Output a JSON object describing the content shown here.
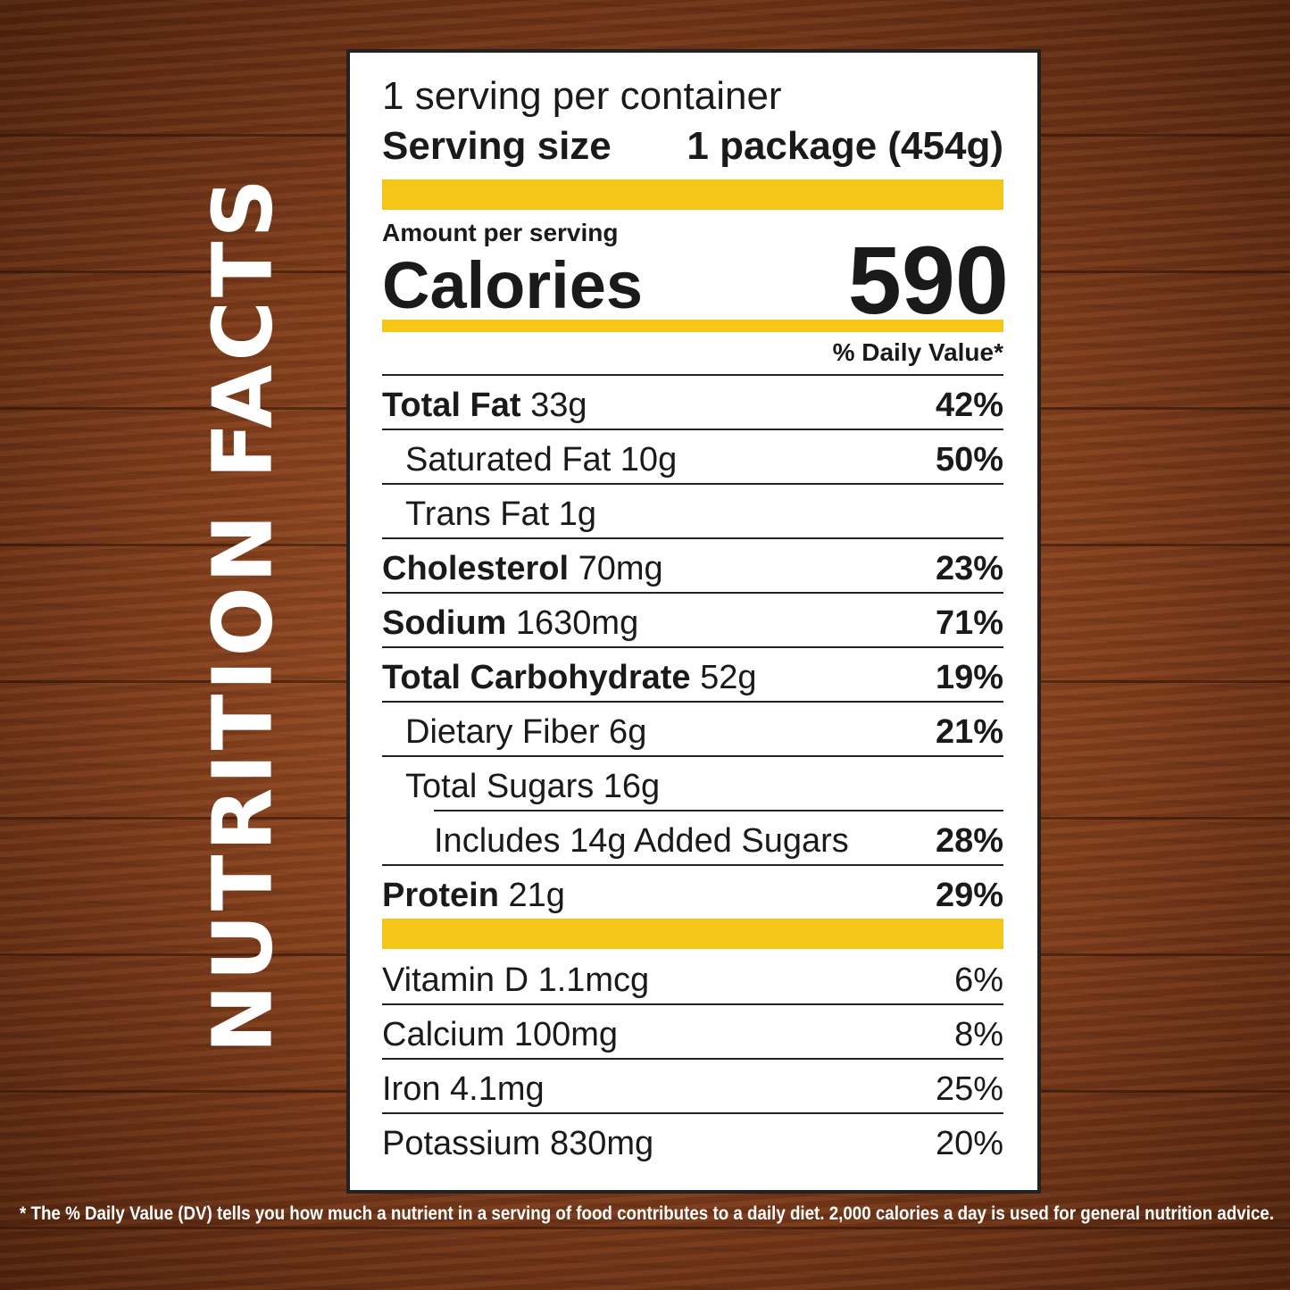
{
  "side_title": "NUTRITION FACTS",
  "servings_per_container": "1 serving per container",
  "serving_size_label": "Serving size",
  "serving_size_value": "1 package (454g)",
  "amount_per_serving": "Amount per serving",
  "calories_label": "Calories",
  "calories_value": "590",
  "daily_value_header": "% Daily Value*",
  "nutrients": [
    {
      "name": "Total Fat",
      "amount": "33g",
      "dv": "42%"
    },
    {
      "name": "Saturated Fat 10g",
      "amount": "",
      "dv": "50%"
    },
    {
      "name": "Trans Fat 1g",
      "amount": "",
      "dv": ""
    },
    {
      "name": "Cholesterol",
      "amount": "70mg",
      "dv": "23%"
    },
    {
      "name": "Sodium",
      "amount": "1630mg",
      "dv": "71%"
    },
    {
      "name": "Total Carbohydrate",
      "amount": "52g",
      "dv": "19%"
    },
    {
      "name": "Dietary Fiber 6g",
      "amount": "",
      "dv": "21%"
    },
    {
      "name": "Total Sugars 16g",
      "amount": "",
      "dv": ""
    },
    {
      "name": "Includes 14g Added Sugars",
      "amount": "",
      "dv": "28%"
    },
    {
      "name": "Protein",
      "amount": "21g",
      "dv": "29%"
    }
  ],
  "vitamins": [
    {
      "name": "Vitamin D 1.1mcg",
      "dv": "6%"
    },
    {
      "name": "Calcium 100mg",
      "dv": "8%"
    },
    {
      "name": "Iron 4.1mg",
      "dv": "25%"
    },
    {
      "name": "Potassium 830mg",
      "dv": "20%"
    }
  ],
  "footnote": "* The % Daily Value (DV) tells you how much a nutrient in a serving of food contributes to a daily diet. 2,000 calories a day is used for general nutrition advice.",
  "colors": {
    "accent": "#f5c518",
    "panel": "#ffffff",
    "text": "#1a1a1a",
    "background": "#7e3c1b"
  }
}
